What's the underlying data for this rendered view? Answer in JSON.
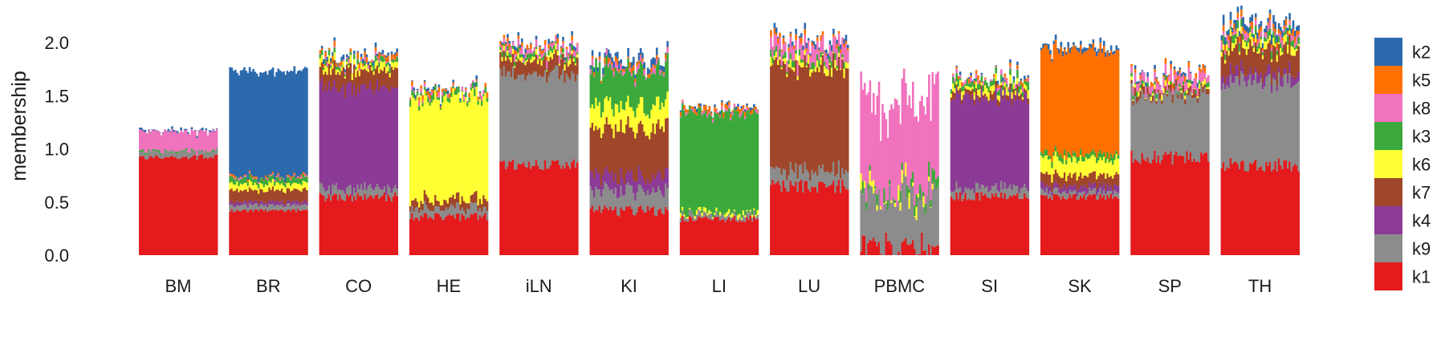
{
  "chart_data": {
    "type": "bar",
    "subtype": "stacked-structure-plot",
    "title": "",
    "xlabel": "",
    "ylabel": "membership",
    "ylim": [
      0,
      2.0
    ],
    "yticks": [
      0.0,
      0.5,
      1.0,
      1.5,
      2.0
    ],
    "ytick_labels": [
      "0.0",
      "0.5",
      "1.0",
      "1.5",
      "2.0"
    ],
    "grid": false,
    "legend": "right",
    "stack_order": [
      "k1",
      "k9",
      "k4",
      "k7",
      "k6",
      "k3",
      "k8",
      "k5",
      "k2"
    ],
    "legend_entries": [
      "k2",
      "k5",
      "k8",
      "k3",
      "k6",
      "k7",
      "k4",
      "k9",
      "k1"
    ],
    "colors": {
      "k1": "#e41a1c",
      "k9": "#8c8c8c",
      "k4": "#8b3a96",
      "k7": "#a0462a",
      "k6": "#ffff33",
      "k3": "#3ca93c",
      "k8": "#f172bd",
      "k5": "#ff7000",
      "k2": "#2c6aae"
    },
    "categories": [
      "BM",
      "BR",
      "CO",
      "HE",
      "iLN",
      "KI",
      "LI",
      "LU",
      "PBMC",
      "SI",
      "SK",
      "SP",
      "TH"
    ],
    "groups": [
      {
        "name": "BM",
        "n": 44,
        "jitter": 0.015,
        "components": {
          "k1": 0.92,
          "k9": 0.05,
          "k8": 0.18,
          "k3": 0.01,
          "k2": 0.01
        }
      },
      {
        "name": "BR",
        "n": 44,
        "jitter": 0.012,
        "components": {
          "k1": 0.42,
          "k9": 0.05,
          "k7": 0.11,
          "k4": 0.03,
          "k6": 0.06,
          "k3": 0.05,
          "k8": 0.01,
          "k5": 0.01,
          "k2": 0.99
        }
      },
      {
        "name": "CO",
        "n": 44,
        "jitter": 0.03,
        "components": {
          "k1": 0.55,
          "k9": 0.08,
          "k4": 0.95,
          "k7": 0.16,
          "k6": 0.05,
          "k3": 0.03,
          "k8": 0.01,
          "k5": 0.03,
          "k2": 0.02
        }
      },
      {
        "name": "HE",
        "n": 44,
        "jitter": 0.03,
        "components": {
          "k1": 0.36,
          "k9": 0.08,
          "k7": 0.08,
          "k6": 0.95,
          "k3": 0.04,
          "k8": 0.02,
          "k5": 0.02,
          "k2": 0.01
        }
      },
      {
        "name": "iLN",
        "n": 44,
        "jitter": 0.03,
        "components": {
          "k1": 0.85,
          "k9": 0.85,
          "k7": 0.13,
          "k6": 0.03,
          "k3": 0.03,
          "k8": 0.05,
          "k5": 0.02,
          "k2": 0.02
        }
      },
      {
        "name": "KI",
        "n": 44,
        "jitter": 0.04,
        "components": {
          "k1": 0.42,
          "k9": 0.18,
          "k4": 0.14,
          "k7": 0.45,
          "k6": 0.22,
          "k3": 0.34,
          "k8": 0.03,
          "k5": 0.02,
          "k2": 0.04
        }
      },
      {
        "name": "LI",
        "n": 44,
        "jitter": 0.025,
        "components": {
          "k1": 0.34,
          "k9": 0.04,
          "k6": 0.02,
          "k3": 0.93,
          "k8": 0.01,
          "k5": 0.03,
          "k2": 0.01
        }
      },
      {
        "name": "LU",
        "n": 44,
        "jitter": 0.04,
        "components": {
          "k1": 0.65,
          "k9": 0.14,
          "k7": 0.95,
          "k6": 0.05,
          "k3": 0.03,
          "k8": 0.12,
          "k5": 0.02,
          "k2": 0.02
        }
      },
      {
        "name": "PBMC",
        "n": 44,
        "jitter": 0.12,
        "components": {
          "k1": 0.1,
          "k9": 0.45,
          "k6": 0.03,
          "k3": 0.03,
          "k8": 0.8
        }
      },
      {
        "name": "SI",
        "n": 44,
        "jitter": 0.03,
        "components": {
          "k1": 0.55,
          "k9": 0.08,
          "k4": 0.85,
          "k7": 0.05,
          "k6": 0.05,
          "k3": 0.05,
          "k8": 0.02,
          "k5": 0.01,
          "k2": 0.01
        }
      },
      {
        "name": "SK",
        "n": 44,
        "jitter": 0.02,
        "components": {
          "k1": 0.55,
          "k9": 0.05,
          "k4": 0.05,
          "k7": 0.1,
          "k6": 0.15,
          "k3": 0.05,
          "k5": 0.98,
          "k2": 0.03
        }
      },
      {
        "name": "SP",
        "n": 44,
        "jitter": 0.035,
        "components": {
          "k1": 0.92,
          "k9": 0.58,
          "k7": 0.05,
          "k6": 0.02,
          "k3": 0.02,
          "k8": 0.08,
          "k5": 0.02,
          "k2": 0.01
        }
      },
      {
        "name": "TH",
        "n": 44,
        "jitter": 0.035,
        "components": {
          "k1": 0.85,
          "k9": 0.8,
          "k4": 0.08,
          "k7": 0.22,
          "k6": 0.05,
          "k3": 0.05,
          "k8": 0.05,
          "k5": 0.04,
          "k2": 0.06
        }
      }
    ]
  }
}
